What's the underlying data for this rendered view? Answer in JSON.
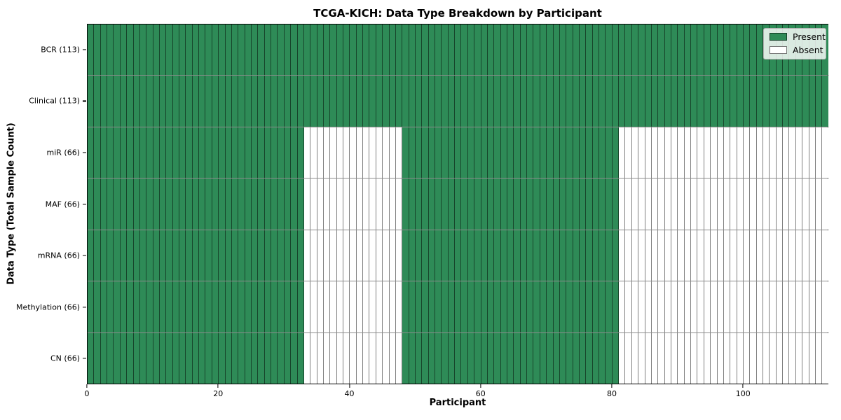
{
  "chart_data": {
    "type": "heatmap",
    "title": "TCGA-KICH: Data Type Breakdown by Participant",
    "xlabel": "Participant",
    "ylabel": "Data Type (Total Sample Count)",
    "n_participants": 113,
    "x_range": [
      0,
      113
    ],
    "x_ticks": [
      "0",
      "20",
      "40",
      "60",
      "80",
      "100"
    ],
    "x_tick_values": [
      0,
      20,
      40,
      60,
      80,
      100
    ],
    "grid": false,
    "legend_position": "upper right",
    "legend": [
      {
        "label": "Present",
        "state": "present",
        "color": "#2e8b57"
      },
      {
        "label": "Absent",
        "state": "absent",
        "color": "#ffffff"
      }
    ],
    "colors": {
      "present": "#2e8b57",
      "absent": "#ffffff"
    },
    "rows": [
      {
        "label": "BCR (113)",
        "data_type": "BCR",
        "present_count": 113,
        "runs": [
          {
            "state": "present",
            "count": 113
          }
        ]
      },
      {
        "label": "Clinical (113)",
        "data_type": "Clinical",
        "present_count": 113,
        "runs": [
          {
            "state": "present",
            "count": 113
          }
        ]
      },
      {
        "label": "miR (66)",
        "data_type": "miR",
        "present_count": 66,
        "runs": [
          {
            "state": "present",
            "count": 33
          },
          {
            "state": "absent",
            "count": 15
          },
          {
            "state": "present",
            "count": 33
          },
          {
            "state": "absent",
            "count": 32
          }
        ]
      },
      {
        "label": "MAF (66)",
        "data_type": "MAF",
        "present_count": 66,
        "runs": [
          {
            "state": "present",
            "count": 33
          },
          {
            "state": "absent",
            "count": 15
          },
          {
            "state": "present",
            "count": 33
          },
          {
            "state": "absent",
            "count": 32
          }
        ]
      },
      {
        "label": "mRNA (66)",
        "data_type": "mRNA",
        "present_count": 66,
        "runs": [
          {
            "state": "present",
            "count": 33
          },
          {
            "state": "absent",
            "count": 15
          },
          {
            "state": "present",
            "count": 33
          },
          {
            "state": "absent",
            "count": 32
          }
        ]
      },
      {
        "label": "Methylation (66)",
        "data_type": "Methylation",
        "present_count": 66,
        "runs": [
          {
            "state": "present",
            "count": 33
          },
          {
            "state": "absent",
            "count": 15
          },
          {
            "state": "present",
            "count": 33
          },
          {
            "state": "absent",
            "count": 32
          }
        ]
      },
      {
        "label": "CN (66)",
        "data_type": "CN",
        "present_count": 66,
        "runs": [
          {
            "state": "present",
            "count": 33
          },
          {
            "state": "absent",
            "count": 15
          },
          {
            "state": "present",
            "count": 33
          },
          {
            "state": "absent",
            "count": 32
          }
        ]
      }
    ]
  }
}
